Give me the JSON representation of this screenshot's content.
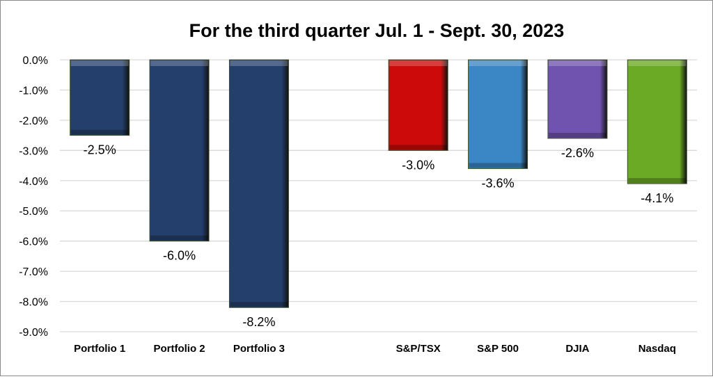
{
  "chart_data": {
    "type": "bar",
    "title": "For the third quarter Jul. 1 - Sept. 30, 2023",
    "xlabel": "",
    "ylabel": "",
    "ylim": [
      -9.0,
      0.0
    ],
    "yticks": [
      "0.0%",
      "-1.0%",
      "-2.0%",
      "-3.0%",
      "-4.0%",
      "-5.0%",
      "-6.0%",
      "-7.0%",
      "-8.0%",
      "-9.0%"
    ],
    "grid": true,
    "legend": "none",
    "categories": [
      "Portfolio 1",
      "Portfolio 2",
      "Portfolio 3",
      "",
      "S&P/TSX",
      "S&P 500",
      "DJIA",
      "Nasdaq"
    ],
    "values": [
      -2.5,
      -6.0,
      -8.2,
      null,
      -3.0,
      -3.6,
      -2.6,
      -4.1
    ],
    "data_labels": [
      "-2.5%",
      "-6.0%",
      "-8.2%",
      "",
      "-3.0%",
      "-3.6%",
      "-2.6%",
      "-4.1%"
    ],
    "colors": [
      "#253F6D",
      "#253F6D",
      "#253F6D",
      "",
      "#CC0A0A",
      "#3B86C4",
      "#6F53AE",
      "#6BAA24"
    ]
  }
}
